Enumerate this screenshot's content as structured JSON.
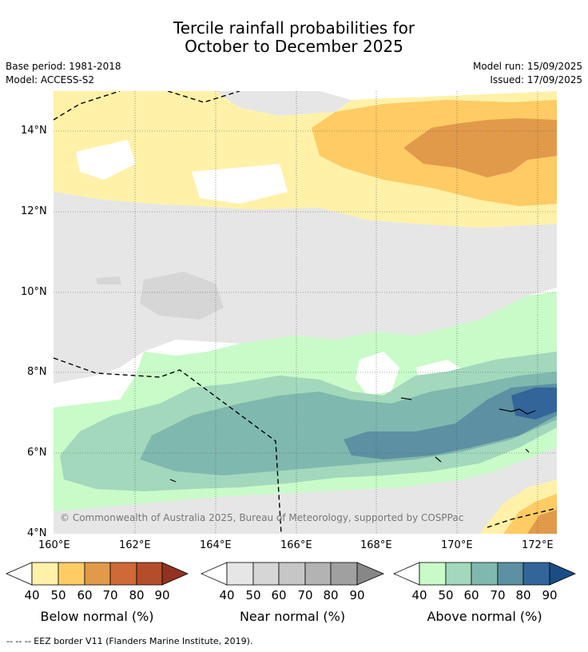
{
  "title_line1": "Tercile rainfall probabilities for",
  "title_line2": "October to December 2025",
  "meta": {
    "base_period": "Base period: 1981-2018",
    "model": "Model: ACCESS-S2",
    "model_run": "Model run: 15/09/2025",
    "issued": "Issued: 17/09/2025"
  },
  "map": {
    "lat_labels": [
      "4°N",
      "6°N",
      "8°N",
      "10°N",
      "12°N",
      "14°N"
    ],
    "lon_labels": [
      "160°E",
      "162°E",
      "164°E",
      "166°E",
      "168°E",
      "170°E",
      "172°E"
    ],
    "copyright": "© Commonwealth of Australia 2025, Bureau of Meteorology, supported by COSPPac"
  },
  "colorbars": [
    {
      "label": "Below normal (%)",
      "ticks": [
        "40",
        "50",
        "60",
        "70",
        "80",
        "90"
      ],
      "colors": [
        "#fff1a8",
        "#fecb64",
        "#e19a4a",
        "#cf6937",
        "#b44d2a",
        "#923321"
      ]
    },
    {
      "label": "Near normal (%)",
      "ticks": [
        "40",
        "50",
        "60",
        "70",
        "80",
        "90"
      ],
      "colors": [
        "#e6e6e6",
        "#d6d6d6",
        "#c6c6c6",
        "#b3b3b3",
        "#a0a0a0",
        "#878787"
      ]
    },
    {
      "label": "Above normal (%)",
      "ticks": [
        "40",
        "50",
        "60",
        "70",
        "80",
        "90"
      ],
      "colors": [
        "#c8fbc8",
        "#a3d8bd",
        "#7fb8ae",
        "#5c90a2",
        "#33649a",
        "#1a4c86"
      ]
    }
  ],
  "footnote": "--  --  -- EEZ border V11 (Flanders Marine Institute, 2019)."
}
